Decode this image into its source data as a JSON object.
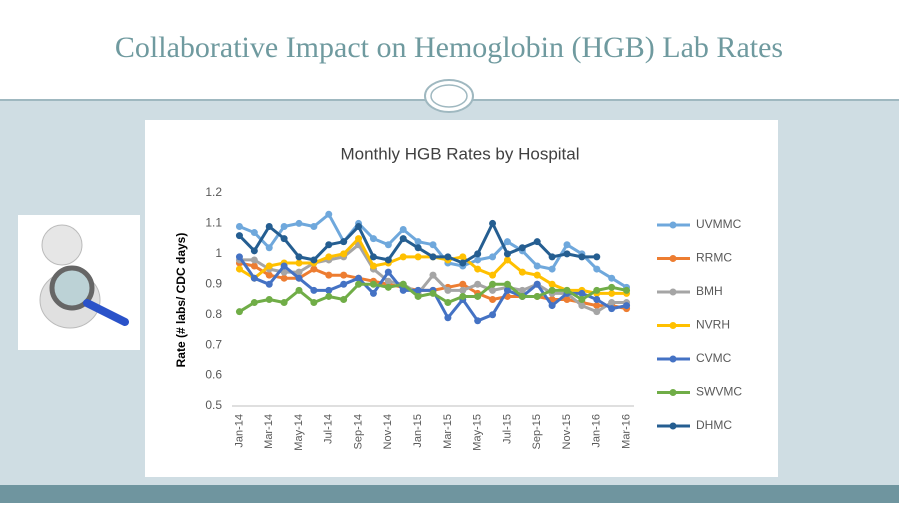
{
  "slide_title": "Collaborative Impact on Hemoglobin (HGB) Lab Rates",
  "chart_data": {
    "type": "line",
    "title": "Monthly HGB Rates by Hospital",
    "y_label": "Rate (# labs/ CDC days)",
    "categories": [
      "Jan-14",
      null,
      "Mar-14",
      null,
      "May-14",
      null,
      "Jul-14",
      null,
      "Sep-14",
      null,
      "Nov-14",
      null,
      "Jan-15",
      null,
      "Mar-15",
      null,
      "May-15",
      null,
      "Jul-15",
      null,
      "Sep-15",
      null,
      "Nov-15",
      null,
      "Jan-16",
      null,
      "Mar-16"
    ],
    "ylim": [
      0.5,
      1.2
    ],
    "yticks": [
      0.5,
      0.6,
      0.7,
      0.8,
      0.9,
      1,
      1.1,
      1.2
    ],
    "legend": "right",
    "series": [
      {
        "name": "UVMMC",
        "color": "#6fa8dc",
        "values": [
          1.09,
          1.07,
          1.02,
          1.09,
          1.1,
          1.09,
          1.13,
          1.04,
          1.1,
          1.05,
          1.03,
          1.08,
          1.04,
          1.03,
          0.97,
          0.96,
          0.98,
          0.99,
          1.04,
          1.01,
          0.96,
          0.95,
          1.03,
          1.0,
          0.95,
          0.92,
          0.89
        ]
      },
      {
        "name": "RRMC",
        "color": "#ed7d31",
        "values": [
          0.97,
          0.96,
          0.93,
          0.92,
          0.92,
          0.95,
          0.93,
          0.93,
          0.92,
          0.91,
          0.9,
          0.89,
          0.88,
          0.88,
          0.89,
          0.9,
          0.87,
          0.85,
          0.86,
          0.86,
          0.86,
          0.85,
          0.85,
          0.84,
          0.83,
          0.83,
          0.82
        ]
      },
      {
        "name": "BMH",
        "color": "#a5a5a5",
        "values": [
          0.98,
          0.98,
          0.95,
          0.94,
          0.94,
          0.97,
          0.98,
          0.99,
          1.03,
          0.95,
          0.91,
          0.9,
          0.87,
          0.93,
          0.88,
          0.88,
          0.9,
          0.88,
          0.89,
          0.88,
          0.9,
          0.87,
          0.87,
          0.83,
          0.81,
          0.84,
          0.84
        ]
      },
      {
        "name": "NVRH",
        "color": "#ffc000",
        "values": [
          0.95,
          0.92,
          0.96,
          0.97,
          0.97,
          0.97,
          0.99,
          1.0,
          1.05,
          0.96,
          0.97,
          0.99,
          0.99,
          0.99,
          0.98,
          0.99,
          0.95,
          0.93,
          0.98,
          0.94,
          0.93,
          0.9,
          0.88,
          0.88,
          0.87,
          0.87,
          0.87
        ]
      },
      {
        "name": "CVMC",
        "color": "#4472c4",
        "values": [
          0.99,
          0.92,
          0.9,
          0.96,
          0.92,
          0.88,
          0.88,
          0.9,
          0.92,
          0.87,
          0.94,
          0.88,
          0.88,
          0.88,
          0.79,
          0.85,
          0.78,
          0.8,
          0.88,
          0.86,
          0.9,
          0.83,
          0.87,
          0.87,
          0.85,
          0.82,
          0.83
        ]
      },
      {
        "name": "SWVMC",
        "color": "#70ad47",
        "values": [
          0.81,
          0.84,
          0.85,
          0.84,
          0.88,
          0.84,
          0.86,
          0.85,
          0.9,
          0.9,
          0.89,
          0.9,
          0.86,
          0.87,
          0.84,
          0.86,
          0.86,
          0.9,
          0.9,
          0.86,
          0.86,
          0.88,
          0.88,
          0.85,
          0.88,
          0.89,
          0.88
        ]
      },
      {
        "name": "DHMC",
        "color": "#255e91",
        "values": [
          1.06,
          1.01,
          1.09,
          1.05,
          0.99,
          0.98,
          1.03,
          1.04,
          1.09,
          0.99,
          0.98,
          1.05,
          1.02,
          0.99,
          0.99,
          0.97,
          1.0,
          1.1,
          1.0,
          1.02,
          1.04,
          0.99,
          1.0,
          0.99,
          0.99,
          null,
          null
        ]
      }
    ]
  }
}
